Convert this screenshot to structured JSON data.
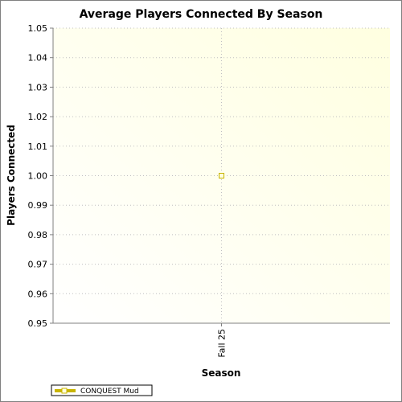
{
  "chart_data": {
    "type": "line",
    "title": "Average Players Connected By Season",
    "xlabel": "Season",
    "ylabel": "Players Connected",
    "categories": [
      "Fall 25"
    ],
    "series": [
      {
        "name": "CONQUEST Mud",
        "values": [
          1.0
        ],
        "color": "#c8b400"
      }
    ],
    "ylim": [
      0.95,
      1.05
    ],
    "yticks": [
      "0.95",
      "0.96",
      "0.97",
      "0.98",
      "0.99",
      "1.00",
      "1.01",
      "1.02",
      "1.03",
      "1.04",
      "1.05"
    ],
    "grid": true,
    "legend": "bottom-left",
    "plot_background": [
      "#ffffe0",
      "#ffffff"
    ]
  }
}
